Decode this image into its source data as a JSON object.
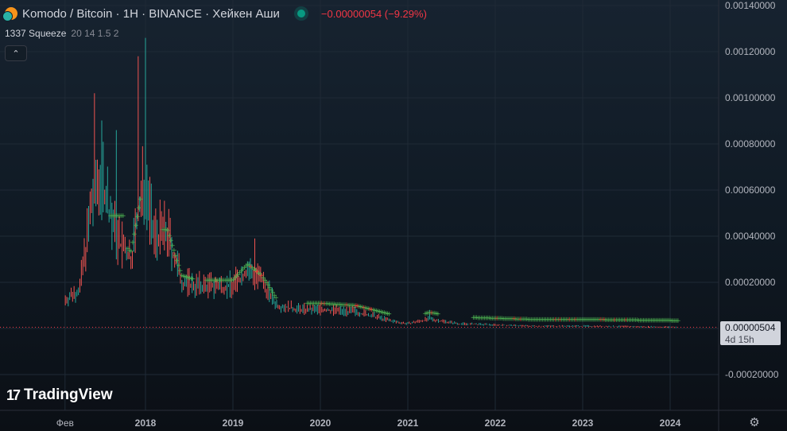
{
  "header": {
    "symbol_title": "Komodo / Bitcoin · 1H · BINANCE · Хейкен Аши",
    "change": "−0.00000054 (−9.29%)"
  },
  "indicator": {
    "name": "1337 Squeeze",
    "params": "20 14 1.5 2",
    "collapse_icon": "chevron-up"
  },
  "watermark": {
    "mark": "17",
    "text": "TradingView"
  },
  "price_label": {
    "price": "0.00000504",
    "countdown": "4d 15h"
  },
  "colors": {
    "up": "#26a69a",
    "down": "#ef5350",
    "squeeze_on": "#4caf50",
    "squeeze_off": "#f44336",
    "change_negative": "#f23645"
  },
  "chart_data": {
    "type": "candlestick",
    "y_ticks": [
      "0.00140000",
      "0.00120000",
      "0.00100000",
      "0.00080000",
      "0.00060000",
      "0.00040000",
      "0.00020000",
      "-0.00020000"
    ],
    "x_ticks": [
      "Фев",
      "2018",
      "2019",
      "2020",
      "2021",
      "2022",
      "2023",
      "2024"
    ],
    "ylim": [
      -0.0003,
      0.00145
    ],
    "last_price": 5.04e-06,
    "price_series": [
      [
        "2017-02",
        0.00012
      ],
      [
        "2017-04",
        0.00017
      ],
      [
        "2017-06",
        0.0006
      ],
      [
        "2017-07",
        0.00065
      ],
      [
        "2017-09",
        0.00038
      ],
      [
        "2017-11",
        0.0003
      ],
      [
        "2018-01",
        0.00065
      ],
      [
        "2018-02",
        0.0004
      ],
      [
        "2018-04",
        0.0004
      ],
      [
        "2018-06",
        0.0002
      ],
      [
        "2018-08",
        0.00018
      ],
      [
        "2018-10",
        0.00018
      ],
      [
        "2019-01",
        0.00018
      ],
      [
        "2019-03",
        0.00025
      ],
      [
        "2019-05",
        0.0002
      ],
      [
        "2019-07",
        0.0001
      ],
      [
        "2019-10",
        8e-05
      ],
      [
        "2020-01",
        8e-05
      ],
      [
        "2020-06",
        7e-05
      ],
      [
        "2020-11",
        3e-05
      ],
      [
        "2021-01",
        2e-05
      ],
      [
        "2021-04",
        4e-05
      ],
      [
        "2021-08",
        2e-05
      ],
      [
        "2022-01",
        1.5e-05
      ],
      [
        "2022-06",
        1e-05
      ],
      [
        "2023-01",
        1e-05
      ],
      [
        "2023-06",
        8e-06
      ],
      [
        "2024-02",
        5.04e-06
      ]
    ],
    "spikes": [
      [
        "2017-06",
        0.00102
      ],
      [
        "2017-09",
        0.00086
      ],
      [
        "2017-12",
        0.00118
      ],
      [
        "2018-01",
        0.00126
      ],
      [
        "2019-04",
        0.00039
      ],
      [
        "2021-04",
        8e-05
      ]
    ]
  }
}
